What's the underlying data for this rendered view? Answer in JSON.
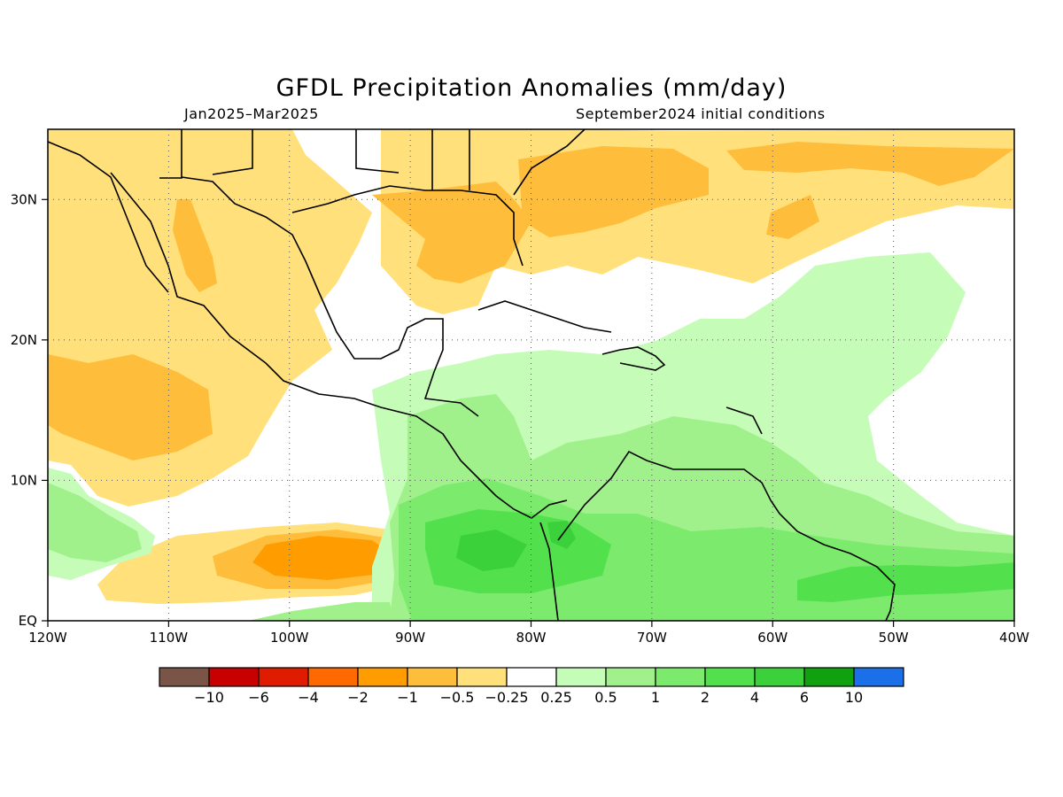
{
  "title": "GFDL Precipitation Anomalies (mm/day)",
  "subtitle_left": "Jan2025–Mar2025",
  "subtitle_right": "September2024 initial conditions",
  "map": {
    "lon_range": [
      -120,
      -40
    ],
    "lat_range": [
      0,
      35
    ],
    "x_ticks": [
      {
        "lon": -120,
        "label": "120W"
      },
      {
        "lon": -110,
        "label": "110W"
      },
      {
        "lon": -100,
        "label": "100W"
      },
      {
        "lon": -90,
        "label": "90W"
      },
      {
        "lon": -80,
        "label": "80W"
      },
      {
        "lon": -70,
        "label": "70W"
      },
      {
        "lon": -60,
        "label": "60W"
      },
      {
        "lon": -50,
        "label": "50W"
      },
      {
        "lon": -40,
        "label": "40W"
      }
    ],
    "y_ticks": [
      {
        "lat": 0,
        "label": "EQ"
      },
      {
        "lat": 10,
        "label": "10N"
      },
      {
        "lat": 20,
        "label": "20N"
      },
      {
        "lat": 30,
        "label": "30N"
      }
    ],
    "grid": "dotted"
  },
  "colorbar": {
    "colors": [
      "#7a5446",
      "#c80000",
      "#e01c00",
      "#ff6a00",
      "#ff9d00",
      "#ffbd3c",
      "#ffe07a",
      "#ffffff",
      "#c5fdb8",
      "#a0f18c",
      "#7cea6c",
      "#52e14c",
      "#3ad13a",
      "#10a10f",
      "#1b6fe8"
    ],
    "labels": [
      "−10",
      "−6",
      "−4",
      "−2",
      "−1",
      "−0.5",
      "−0.25",
      "0.25",
      "0.5",
      "1",
      "2",
      "4",
      "6",
      "10"
    ]
  }
}
